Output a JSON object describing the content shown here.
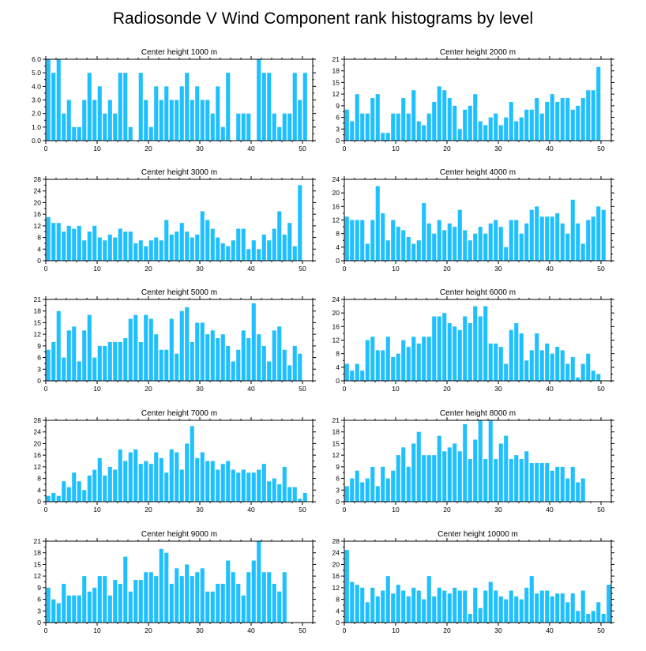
{
  "title": "Radiosonde V Wind Component rank histograms by level",
  "colors": {
    "bar": "#1ec0ff",
    "axis": "#000000",
    "background": "#ffffff"
  },
  "chart_data": [
    {
      "type": "bar",
      "title": "Center height 1000 m",
      "xlim": [
        0,
        52
      ],
      "ylim": [
        0,
        6
      ],
      "yticks": [
        0,
        1,
        2,
        3,
        4,
        5,
        6
      ],
      "ytick_labels": [
        "0.0",
        "1.0",
        "2.0",
        "3.0",
        "4.0",
        "5.0",
        "6.0"
      ],
      "xticks": [
        0,
        10,
        20,
        30,
        40,
        50
      ],
      "values": [
        6,
        5,
        6,
        2,
        3,
        1,
        1,
        3,
        5,
        3,
        4,
        2,
        3,
        2,
        5,
        5,
        1,
        0,
        5,
        3,
        1,
        4,
        3,
        4,
        3,
        3,
        4,
        5,
        3,
        4,
        3,
        3,
        2,
        4,
        1,
        5,
        0,
        2,
        2,
        2,
        0,
        6,
        5,
        5,
        2,
        1,
        2,
        2,
        5,
        3,
        5,
        0
      ]
    },
    {
      "type": "bar",
      "title": "Center height 2000 m",
      "xlim": [
        0,
        52
      ],
      "ylim": [
        0,
        21
      ],
      "yticks": [
        0,
        3,
        6,
        9,
        12,
        15,
        18,
        21
      ],
      "ytick_labels": [
        "0",
        "3",
        "6",
        "9",
        "12",
        "15",
        "18",
        "21"
      ],
      "xticks": [
        0,
        10,
        20,
        30,
        40,
        50
      ],
      "values": [
        8,
        5,
        12,
        7,
        7,
        11,
        12,
        2,
        2,
        7,
        7,
        11,
        7,
        13,
        5,
        4,
        7,
        10,
        14,
        13,
        11,
        9,
        3,
        8,
        9,
        12,
        5,
        4,
        6,
        7,
        4,
        6,
        10,
        5,
        6,
        8,
        8,
        11,
        7,
        10,
        12,
        10,
        11,
        11,
        8,
        9,
        11,
        13,
        13,
        19,
        0,
        0
      ]
    },
    {
      "type": "bar",
      "title": "Center height 3000 m",
      "xlim": [
        0,
        52
      ],
      "ylim": [
        0,
        28
      ],
      "yticks": [
        0,
        4,
        8,
        12,
        16,
        20,
        24,
        28
      ],
      "ytick_labels": [
        "0",
        "4",
        "8",
        "12",
        "16",
        "20",
        "24",
        "28"
      ],
      "xticks": [
        0,
        10,
        20,
        30,
        40,
        50
      ],
      "values": [
        15,
        13,
        13,
        10,
        12,
        11,
        12,
        7,
        10,
        12,
        8,
        7,
        9,
        8,
        11,
        10,
        10,
        6,
        7,
        5,
        7,
        8,
        7,
        14,
        9,
        10,
        13,
        10,
        8,
        9,
        17,
        14,
        11,
        8,
        6,
        5,
        7,
        11,
        11,
        4,
        7,
        4,
        9,
        7,
        11,
        17,
        9,
        13,
        5,
        26,
        0,
        0
      ]
    },
    {
      "type": "bar",
      "title": "Center height 4000 m",
      "xlim": [
        0,
        52
      ],
      "ylim": [
        0,
        24
      ],
      "yticks": [
        0,
        4,
        8,
        12,
        16,
        20,
        24
      ],
      "ytick_labels": [
        "0",
        "4",
        "8",
        "12",
        "16",
        "20",
        "24"
      ],
      "xticks": [
        0,
        10,
        20,
        30,
        40,
        50
      ],
      "values": [
        13,
        12,
        12,
        12,
        5,
        12,
        22,
        14,
        6,
        12,
        10,
        9,
        7,
        5,
        6,
        17,
        11,
        8,
        12,
        9,
        11,
        10,
        15,
        9,
        6,
        8,
        10,
        8,
        11,
        12,
        10,
        4,
        12,
        12,
        8,
        11,
        15,
        16,
        13,
        13,
        13,
        14,
        11,
        8,
        18,
        11,
        5,
        12,
        13,
        16,
        15,
        0
      ]
    },
    {
      "type": "bar",
      "title": "Center height 5000 m",
      "xlim": [
        0,
        52
      ],
      "ylim": [
        0,
        21
      ],
      "yticks": [
        0,
        3,
        6,
        9,
        12,
        15,
        18,
        21
      ],
      "ytick_labels": [
        "0",
        "3",
        "6",
        "9",
        "12",
        "15",
        "18",
        "21"
      ],
      "xticks": [
        0,
        10,
        20,
        30,
        40,
        50
      ],
      "values": [
        8,
        10,
        18,
        6,
        13,
        14,
        5,
        13,
        17,
        6,
        9,
        9,
        10,
        10,
        10,
        11,
        16,
        17,
        10,
        17,
        16,
        12,
        8,
        8,
        16,
        7,
        18,
        19,
        10,
        15,
        15,
        12,
        13,
        11,
        12,
        9,
        5,
        8,
        13,
        11,
        20,
        12,
        9,
        5,
        13,
        14,
        8,
        4,
        9,
        7,
        0,
        0
      ]
    },
    {
      "type": "bar",
      "title": "Center height 6000 m",
      "xlim": [
        0,
        52
      ],
      "ylim": [
        0,
        24
      ],
      "yticks": [
        0,
        4,
        8,
        12,
        16,
        20,
        24
      ],
      "ytick_labels": [
        "0",
        "4",
        "8",
        "12",
        "16",
        "20",
        "24"
      ],
      "xticks": [
        0,
        10,
        20,
        30,
        40,
        50
      ],
      "values": [
        5,
        3,
        5,
        3,
        12,
        13,
        9,
        9,
        13,
        7,
        8,
        12,
        10,
        13,
        11,
        13,
        13,
        19,
        19,
        20,
        17,
        16,
        15,
        19,
        17,
        22,
        19,
        22,
        11,
        11,
        10,
        5,
        15,
        17,
        14,
        6,
        9,
        14,
        9,
        11,
        8,
        10,
        9,
        5,
        7,
        1,
        5,
        8,
        3,
        2,
        0,
        0
      ]
    },
    {
      "type": "bar",
      "title": "Center height 7000 m",
      "xlim": [
        0,
        52
      ],
      "ylim": [
        0,
        28
      ],
      "yticks": [
        0,
        4,
        8,
        12,
        16,
        20,
        24,
        28
      ],
      "ytick_labels": [
        "0",
        "4",
        "8",
        "12",
        "16",
        "20",
        "24",
        "28"
      ],
      "xticks": [
        0,
        10,
        20,
        30,
        40,
        50
      ],
      "values": [
        2,
        3,
        2,
        7,
        5,
        10,
        7,
        4,
        9,
        11,
        15,
        9,
        12,
        11,
        18,
        14,
        17,
        18,
        13,
        14,
        13,
        17,
        15,
        10,
        18,
        17,
        11,
        20,
        26,
        15,
        17,
        14,
        14,
        11,
        13,
        14,
        11,
        10,
        11,
        10,
        10,
        11,
        13,
        7,
        8,
        6,
        12,
        5,
        5,
        1,
        3,
        0
      ]
    },
    {
      "type": "bar",
      "title": "Center height 8000 m",
      "xlim": [
        0,
        52
      ],
      "ylim": [
        0,
        21
      ],
      "yticks": [
        0,
        3,
        6,
        9,
        12,
        15,
        18,
        21
      ],
      "ytick_labels": [
        "0",
        "3",
        "6",
        "9",
        "12",
        "15",
        "18",
        "21"
      ],
      "xticks": [
        0,
        10,
        20,
        30,
        40,
        50
      ],
      "values": [
        4,
        6,
        8,
        5,
        6,
        9,
        4,
        9,
        6,
        8,
        12,
        14,
        9,
        15,
        18,
        12,
        12,
        12,
        17,
        13,
        14,
        15,
        13,
        20,
        11,
        16,
        21,
        11,
        21,
        11,
        15,
        17,
        11,
        12,
        11,
        13,
        10,
        10,
        10,
        10,
        8,
        9,
        9,
        6,
        9,
        5,
        6,
        0,
        0,
        0,
        0,
        0
      ]
    },
    {
      "type": "bar",
      "title": "Center height 9000 m",
      "xlim": [
        0,
        52
      ],
      "ylim": [
        0,
        21
      ],
      "yticks": [
        0,
        3,
        6,
        9,
        12,
        15,
        18,
        21
      ],
      "ytick_labels": [
        "0",
        "3",
        "6",
        "9",
        "12",
        "15",
        "18",
        "21"
      ],
      "xticks": [
        0,
        10,
        20,
        30,
        40,
        50
      ],
      "values": [
        9,
        6,
        5,
        10,
        7,
        7,
        7,
        12,
        8,
        9,
        12,
        12,
        7,
        11,
        10,
        17,
        8,
        11,
        11,
        13,
        13,
        12,
        19,
        18,
        10,
        14,
        12,
        15,
        12,
        13,
        14,
        8,
        8,
        10,
        10,
        16,
        13,
        10,
        7,
        13,
        16,
        21,
        13,
        13,
        10,
        8,
        13,
        0,
        0,
        0,
        0,
        0
      ]
    },
    {
      "type": "bar",
      "title": "Center height 10000 m",
      "xlim": [
        0,
        52
      ],
      "ylim": [
        0,
        28
      ],
      "yticks": [
        0,
        4,
        8,
        12,
        16,
        20,
        24,
        28
      ],
      "ytick_labels": [
        "0",
        "4",
        "8",
        "12",
        "16",
        "20",
        "24",
        "28"
      ],
      "xticks": [
        0,
        10,
        20,
        30,
        40,
        50
      ],
      "values": [
        25,
        14,
        13,
        12,
        7,
        12,
        9,
        11,
        16,
        10,
        13,
        11,
        9,
        12,
        11,
        8,
        16,
        9,
        12,
        11,
        10,
        12,
        11,
        11,
        3,
        12,
        5,
        11,
        14,
        11,
        9,
        8,
        11,
        9,
        8,
        12,
        16,
        10,
        11,
        11,
        9,
        10,
        10,
        7,
        10,
        4,
        11,
        3,
        4,
        7,
        3,
        13
      ]
    }
  ]
}
